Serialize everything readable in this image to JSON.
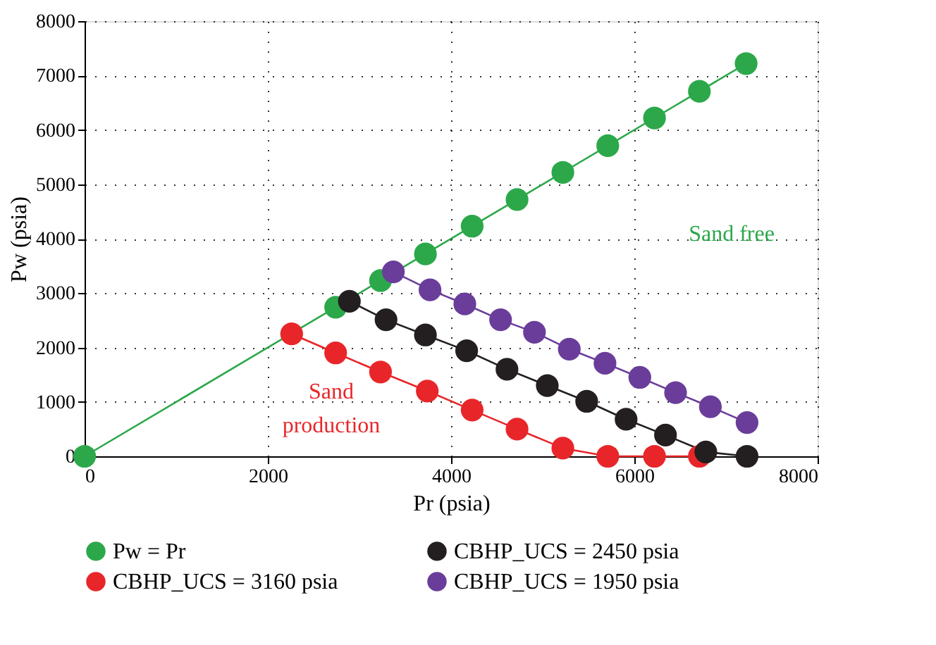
{
  "chart_data": {
    "type": "line",
    "xlabel": "Pr (psia)",
    "ylabel": "Pw (psia)",
    "xlim": [
      0,
      8000
    ],
    "xticks": [
      0,
      2000,
      4000,
      6000,
      8000
    ],
    "ylim": [
      0,
      8000
    ],
    "yticks": [
      0,
      1000,
      2000,
      3000,
      4000,
      5000,
      6000,
      7000,
      8000
    ],
    "grid": true,
    "legend": "bottom",
    "marker": "circle",
    "line_style": "solid",
    "series": [
      {
        "name": "Pw = Pr",
        "color": "#2ca84a",
        "x": [
          0,
          2740,
          3230,
          3720,
          4230,
          4720,
          5220,
          5710,
          6220,
          6710,
          7220
        ],
        "values": [
          0,
          2740,
          3230,
          3720,
          4230,
          4720,
          5220,
          5710,
          6220,
          6710,
          7220
        ]
      },
      {
        "name": "CBHP_UCS = 3160 psia",
        "color": "#e8262a",
        "x": [
          2260,
          2740,
          3230,
          3740,
          4230,
          4720,
          5220,
          5710,
          6220,
          6710
        ],
        "values": [
          2250,
          1900,
          1550,
          1200,
          850,
          500,
          150,
          0,
          0,
          0
        ]
      },
      {
        "name": "CBHP_UCS = 2450 psia",
        "color": "#231f20",
        "x": [
          2890,
          3290,
          3720,
          4170,
          4610,
          5050,
          5480,
          5910,
          6340,
          6780,
          7230
        ],
        "values": [
          2850,
          2510,
          2230,
          1940,
          1600,
          1300,
          1010,
          680,
          390,
          80,
          0
        ]
      },
      {
        "name": "CBHP_UCS = 1950 psia",
        "color": "#6a3d9a",
        "x": [
          3370,
          3770,
          4150,
          4540,
          4910,
          5290,
          5680,
          6060,
          6450,
          6830,
          7230
        ],
        "values": [
          3390,
          3060,
          2800,
          2510,
          2280,
          1970,
          1710,
          1450,
          1170,
          910,
          620
        ]
      }
    ],
    "annotations": [
      "Sand free",
      "Sand\nproduction"
    ]
  }
}
